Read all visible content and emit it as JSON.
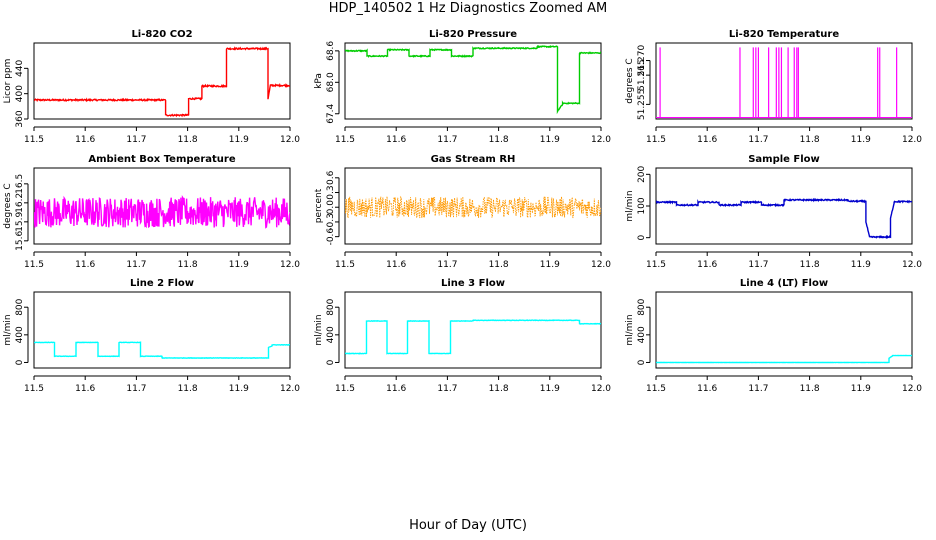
{
  "figure": {
    "title": "HDP_140502  1 Hz Diagnostics Zoomed AM",
    "xlabel": "Hour of Day (UTC)"
  },
  "chart_data": [
    {
      "type": "line",
      "title": "Li-820 CO2",
      "ylabel": "Licor ppm",
      "color": "#ff0000",
      "xlim": [
        11.5,
        12.0
      ],
      "ylim": [
        360,
        480
      ],
      "xticks": [
        "11.5",
        "11.6",
        "11.7",
        "11.8",
        "11.9",
        "12.0"
      ],
      "yticks": [
        360,
        400,
        440
      ],
      "ytick_labels": [
        "360",
        "400",
        "440"
      ],
      "x": [
        11.5,
        11.757,
        11.757,
        11.802,
        11.802,
        11.828,
        11.828,
        11.876,
        11.876,
        11.957,
        11.957,
        11.962,
        11.962,
        12.0
      ],
      "y": [
        390,
        390,
        366,
        366,
        392,
        392,
        412,
        412,
        471,
        471,
        392,
        414,
        413,
        413
      ],
      "noise": 1.2
    },
    {
      "type": "line",
      "title": "Li-820 Pressure",
      "ylabel": "kPa",
      "color": "#00cc00",
      "xlim": [
        11.5,
        12.0
      ],
      "ylim": [
        67.3,
        68.75
      ],
      "xticks": [
        "11.5",
        "11.6",
        "11.7",
        "11.8",
        "11.9",
        "12.0"
      ],
      "yticks": [
        67.4,
        68.0,
        68.6
      ],
      "ytick_labels": [
        "67.4",
        "68.0",
        "68.6"
      ],
      "x": [
        11.5,
        11.543,
        11.543,
        11.583,
        11.583,
        11.625,
        11.625,
        11.666,
        11.666,
        11.708,
        11.708,
        11.75,
        11.75,
        11.875,
        11.875,
        11.915,
        11.915,
        11.925,
        11.925,
        11.958,
        11.958,
        11.97,
        11.97,
        12.0
      ],
      "y": [
        68.6,
        68.6,
        68.5,
        68.5,
        68.62,
        68.62,
        68.5,
        68.5,
        68.62,
        68.62,
        68.5,
        68.5,
        68.65,
        68.65,
        68.68,
        68.68,
        67.45,
        67.58,
        67.6,
        67.6,
        68.56,
        68.56,
        68.56,
        68.56
      ],
      "noise": 0.01
    },
    {
      "type": "line",
      "title": "Li-820 Temperature",
      "ylabel": "degrees C",
      "color": "#ff00ff",
      "xlim": [
        11.5,
        12.0
      ],
      "ylim": [
        51.25,
        51.276
      ],
      "xticks": [
        "11.5",
        "11.6",
        "11.7",
        "11.8",
        "11.9",
        "12.0"
      ],
      "yticks": [
        51.255,
        51.265,
        51.27
      ],
      "ytick_labels": [
        "51.255",
        "51.265",
        "51.270"
      ],
      "baseline": 51.2505,
      "spike_value": 51.2745,
      "spikes": [
        11.508,
        11.664,
        11.69,
        11.695,
        11.7,
        11.72,
        11.735,
        11.74,
        11.745,
        11.758,
        11.77,
        11.775,
        11.778,
        11.933,
        11.937,
        11.97
      ],
      "noise": 0
    },
    {
      "type": "line",
      "title": "Ambient Box Temperature",
      "ylabel": "degrees C",
      "color": "#ff00ff",
      "xlim": [
        11.5,
        12.0
      ],
      "ylim": [
        15.55,
        16.75
      ],
      "xticks": [
        "11.5",
        "11.6",
        "11.7",
        "11.8",
        "11.9",
        "12.0"
      ],
      "yticks": [
        15.6,
        15.9,
        16.2,
        16.5
      ],
      "ytick_labels": [
        "15.6",
        "15.9",
        "16.2",
        "16.5"
      ],
      "x": [
        11.5,
        12.0
      ],
      "y": [
        16.05,
        16.05
      ],
      "noise": 0.24
    },
    {
      "type": "scatter",
      "title": "Gas Stream RH",
      "ylabel": "percent",
      "color": "#ff9900",
      "xlim": [
        11.5,
        12.0
      ],
      "ylim": [
        -0.75,
        0.8
      ],
      "xticks": [
        "11.5",
        "11.6",
        "11.7",
        "11.8",
        "11.9",
        "12.0"
      ],
      "yticks": [
        -0.6,
        -0.3,
        0.0,
        0.3,
        0.6
      ],
      "ytick_labels": [
        "-0.6",
        "-0.3",
        "0.0",
        "0.3",
        "0.6"
      ],
      "x": [
        11.5,
        12.0
      ],
      "y": [
        0.0,
        0.0
      ],
      "noise": 0.22
    },
    {
      "type": "line",
      "title": "Sample Flow",
      "ylabel": "ml/min",
      "color": "#0000cc",
      "xlim": [
        11.5,
        12.0
      ],
      "ylim": [
        -20,
        220
      ],
      "xticks": [
        "11.5",
        "11.6",
        "11.7",
        "11.8",
        "11.9",
        "12.0"
      ],
      "yticks": [
        0,
        100,
        200
      ],
      "ytick_labels": [
        "0",
        "100",
        "200"
      ],
      "x": [
        11.5,
        11.54,
        11.54,
        11.582,
        11.582,
        11.623,
        11.623,
        11.666,
        11.666,
        11.706,
        11.706,
        11.75,
        11.75,
        11.875,
        11.875,
        11.91,
        11.91,
        11.917,
        11.917,
        11.958,
        11.958,
        11.965,
        11.965,
        12.0
      ],
      "y": [
        112,
        112,
        103,
        103,
        112,
        112,
        103,
        103,
        112,
        112,
        103,
        103,
        119,
        119,
        115,
        115,
        50,
        2,
        2,
        2,
        60,
        110,
        114,
        114
      ],
      "noise": 2
    },
    {
      "type": "line",
      "title": "Line 2 Flow",
      "ylabel": "ml/min",
      "color": "#00ffff",
      "xlim": [
        11.5,
        12.0
      ],
      "ylim": [
        -80,
        1020
      ],
      "xticks": [
        "11.5",
        "11.6",
        "11.7",
        "11.8",
        "11.9",
        "12.0"
      ],
      "yticks": [
        0,
        400,
        800
      ],
      "ytick_labels": [
        "0",
        "400",
        "800"
      ],
      "x": [
        11.5,
        11.54,
        11.54,
        11.582,
        11.582,
        11.625,
        11.625,
        11.666,
        11.666,
        11.708,
        11.708,
        11.75,
        11.75,
        11.958,
        11.958,
        11.965,
        11.965,
        12.0
      ],
      "y": [
        290,
        290,
        90,
        90,
        290,
        290,
        90,
        90,
        290,
        290,
        90,
        90,
        65,
        65,
        220,
        240,
        255,
        255
      ],
      "noise": 3
    },
    {
      "type": "line",
      "title": "Line 3 Flow",
      "ylabel": "ml/min",
      "color": "#00ffff",
      "xlim": [
        11.5,
        12.0
      ],
      "ylim": [
        -80,
        1020
      ],
      "xticks": [
        "11.5",
        "11.6",
        "11.7",
        "11.8",
        "11.9",
        "12.0"
      ],
      "yticks": [
        0,
        400,
        800
      ],
      "ytick_labels": [
        "0",
        "400",
        "800"
      ],
      "x": [
        11.5,
        11.542,
        11.542,
        11.582,
        11.582,
        11.622,
        11.622,
        11.664,
        11.664,
        11.706,
        11.706,
        11.75,
        11.75,
        11.958,
        11.958,
        12.0
      ],
      "y": [
        130,
        130,
        600,
        600,
        130,
        130,
        600,
        600,
        130,
        130,
        600,
        600,
        610,
        610,
        560,
        560
      ],
      "noise": 3
    },
    {
      "type": "line",
      "title": "Line 4 (LT) Flow",
      "ylabel": "ml/min",
      "color": "#00ffff",
      "xlim": [
        11.5,
        12.0
      ],
      "ylim": [
        -80,
        1020
      ],
      "xticks": [
        "11.5",
        "11.6",
        "11.7",
        "11.8",
        "11.9",
        "12.0"
      ],
      "yticks": [
        0,
        400,
        800
      ],
      "ytick_labels": [
        "0",
        "400",
        "800"
      ],
      "x": [
        11.5,
        11.955,
        11.955,
        11.962,
        11.962,
        12.0
      ],
      "y": [
        0,
        0,
        60,
        95,
        100,
        100
      ],
      "noise": 1
    }
  ]
}
